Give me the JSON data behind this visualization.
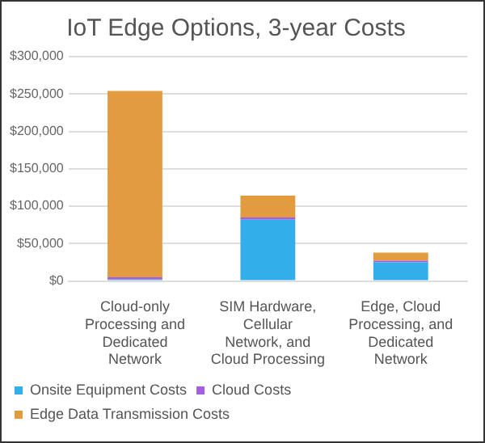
{
  "chart_data": {
    "type": "bar",
    "title": "IoT Edge Options, 3-year Costs",
    "stacked": true,
    "categories": [
      "Cloud-only Processing and Dedicated Network",
      "SIM Hardware, Cellular Network, and Cloud Processing",
      "Edge, Cloud Processing, and Dedicated Network"
    ],
    "series": [
      {
        "name": "Onsite Equipment Costs",
        "color": "#32aeea",
        "values": [
          2000,
          82000,
          25000
        ]
      },
      {
        "name": "Cloud Costs",
        "color": "#a45fe0",
        "values": [
          3000,
          3000,
          2000
        ]
      },
      {
        "name": "Edge Data Transmission Costs",
        "color": "#e29c3f",
        "values": [
          249000,
          29000,
          11000
        ]
      }
    ],
    "ylim": [
      0,
      300000
    ],
    "yticks": [
      {
        "value": 0,
        "label": "$0"
      },
      {
        "value": 50000,
        "label": "$50,000"
      },
      {
        "value": 100000,
        "label": "$100,000"
      },
      {
        "value": 150000,
        "label": "$150,000"
      },
      {
        "value": 200000,
        "label": "$200,000"
      },
      {
        "value": 250000,
        "label": "$250,000"
      },
      {
        "value": 300000,
        "label": "$300,000"
      }
    ],
    "grid": "y",
    "legend": "bottom"
  }
}
